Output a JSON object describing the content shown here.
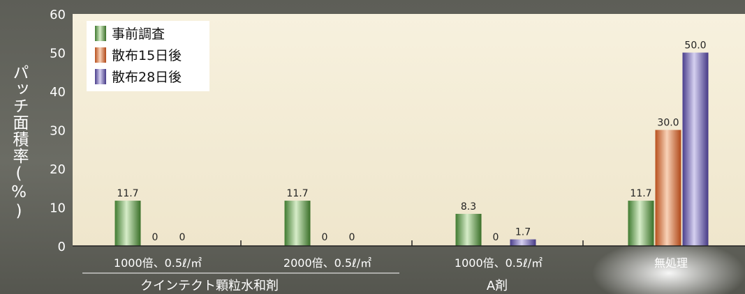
{
  "chart_data": {
    "type": "bar",
    "ylabel": "パッチ面積率(%)",
    "ylim": [
      0,
      60
    ],
    "yticks": [
      0,
      10,
      20,
      30,
      40,
      50,
      60
    ],
    "categories": [
      "1000倍、0.5ℓ/㎡",
      "2000倍、0.5ℓ/㎡",
      "1000倍、0.5ℓ/㎡",
      "無処理"
    ],
    "groups": [
      {
        "label": "クインテクト顆粒水和剤",
        "span": [
          0,
          1
        ]
      },
      {
        "label": "A剤",
        "span": [
          2,
          2
        ]
      }
    ],
    "series": [
      {
        "name": "事前調査",
        "color": "#4f8a3c",
        "values": [
          11.7,
          11.7,
          8.3,
          11.7
        ],
        "labels": [
          "11.7",
          "11.7",
          "8.3",
          "11.7"
        ]
      },
      {
        "name": "散布15日後",
        "color": "#d0632c",
        "values": [
          0,
          0,
          0,
          30.0
        ],
        "labels": [
          "0",
          "0",
          "0",
          "30.0"
        ]
      },
      {
        "name": "散布28日後",
        "color": "#5a4f9e",
        "values": [
          0,
          0,
          1.7,
          50.0
        ],
        "labels": [
          "0",
          "0",
          "1.7",
          "50.0"
        ]
      }
    ],
    "legend": "top-left",
    "grid": false
  }
}
